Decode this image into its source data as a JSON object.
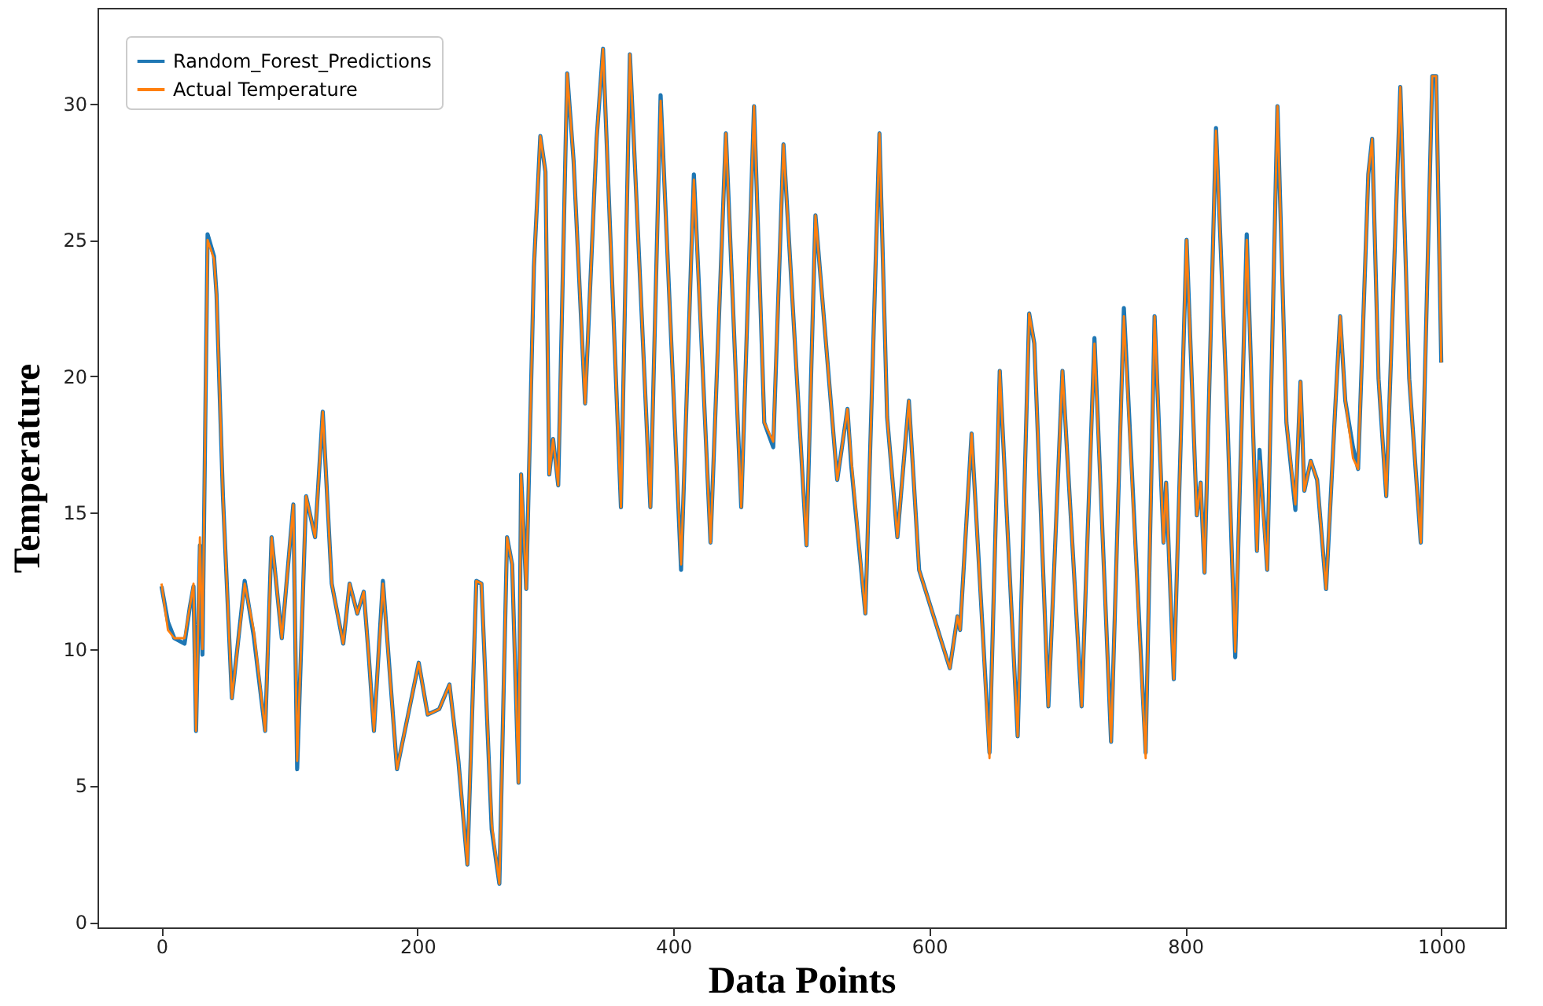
{
  "chart_data": {
    "type": "line",
    "xlabel": "Data Points",
    "ylabel": "Temperature",
    "xlim": [
      -50,
      1050
    ],
    "ylim": [
      -0.2,
      33.5
    ],
    "xticks": [
      0,
      200,
      400,
      600,
      800,
      {
        "value": 1000,
        "label": "1000"
      }
    ],
    "yticks": [
      0,
      5,
      10,
      15,
      20,
      25,
      30
    ],
    "grid": false,
    "legend": "top left",
    "line_style": "solid",
    "marker": "none",
    "x": [
      0,
      5,
      10,
      18,
      22,
      25,
      27,
      30,
      32,
      36,
      41,
      43,
      48,
      55,
      65,
      72,
      81,
      86,
      94,
      103,
      106,
      113,
      120,
      126,
      133,
      142,
      147,
      153,
      158,
      162,
      166,
      173,
      184,
      201,
      208,
      217,
      225,
      232,
      239,
      246,
      250,
      258,
      264,
      270,
      274,
      279,
      281,
      285,
      291,
      296,
      300,
      303,
      306,
      310,
      317,
      322,
      331,
      340,
      345,
      359,
      366,
      382,
      390,
      406,
      416,
      429,
      441,
      453,
      463,
      471,
      478,
      486,
      504,
      511,
      528,
      536,
      539,
      550,
      561,
      567,
      575,
      584,
      592,
      616,
      622,
      624,
      633,
      647,
      655,
      669,
      678,
      682,
      693,
      704,
      719,
      729,
      742,
      752,
      769,
      776,
      783,
      785,
      791,
      801,
      809,
      812,
      815,
      824,
      833,
      839,
      848,
      856,
      858,
      864,
      872,
      879,
      886,
      890,
      893,
      898,
      903,
      910,
      917,
      921,
      925,
      931,
      935,
      943,
      946,
      951,
      957,
      968,
      975,
      984,
      993,
      996,
      1000
    ],
    "series": [
      {
        "name": "Random_Forest_Predictions",
        "color": "#1f77b4",
        "values": [
          12.3,
          11.0,
          10.4,
          10.2,
          11.5,
          12.3,
          7.0,
          13.8,
          9.8,
          25.2,
          24.4,
          23.0,
          15.6,
          8.2,
          12.5,
          10.5,
          7.0,
          14.1,
          10.4,
          15.3,
          5.6,
          15.6,
          14.1,
          18.7,
          12.4,
          10.2,
          12.4,
          11.3,
          12.1,
          9.7,
          7.0,
          12.5,
          5.6,
          9.5,
          7.6,
          7.8,
          8.7,
          5.9,
          2.1,
          12.5,
          12.4,
          3.4,
          1.4,
          14.1,
          13.1,
          5.1,
          16.4,
          12.2,
          24.0,
          28.8,
          27.5,
          16.4,
          17.7,
          16.0,
          31.1,
          27.9,
          19.0,
          28.7,
          32.0,
          15.2,
          31.8,
          15.2,
          30.3,
          12.9,
          27.4,
          13.9,
          28.9,
          15.2,
          29.9,
          18.3,
          17.4,
          28.5,
          13.8,
          25.9,
          16.2,
          18.8,
          16.7,
          11.3,
          28.9,
          18.5,
          14.1,
          19.1,
          12.9,
          9.3,
          11.2,
          10.7,
          17.9,
          6.2,
          20.2,
          6.8,
          22.3,
          21.2,
          7.9,
          20.2,
          7.9,
          21.4,
          6.6,
          22.5,
          6.2,
          22.2,
          13.9,
          16.1,
          8.9,
          25.0,
          14.9,
          16.1,
          12.8,
          29.1,
          18.3,
          9.7,
          25.2,
          13.6,
          17.3,
          12.9,
          29.9,
          18.3,
          15.1,
          19.8,
          15.8,
          16.9,
          16.2,
          12.2,
          18.7,
          22.2,
          19.1,
          17.4,
          16.6,
          27.4,
          28.7,
          19.9,
          15.6,
          30.6,
          19.9,
          13.9,
          31.0,
          31.0,
          20.5
        ]
      },
      {
        "name": "Actual Temperature",
        "color": "#ff7f0e",
        "values": [
          12.4,
          10.7,
          10.4,
          10.4,
          11.5,
          12.4,
          7.0,
          14.1,
          10.0,
          25.0,
          24.3,
          23.0,
          15.6,
          8.2,
          12.4,
          10.7,
          7.0,
          14.1,
          10.4,
          15.3,
          5.9,
          15.6,
          14.1,
          18.7,
          12.4,
          10.2,
          12.4,
          11.3,
          12.1,
          9.7,
          7.0,
          12.4,
          5.6,
          9.5,
          7.6,
          7.8,
          8.7,
          5.9,
          2.1,
          12.5,
          12.4,
          3.6,
          1.4,
          14.1,
          13.1,
          5.1,
          16.4,
          12.2,
          24.0,
          28.8,
          27.5,
          16.4,
          17.7,
          16.0,
          31.1,
          27.9,
          19.0,
          28.7,
          32.0,
          15.2,
          31.8,
          15.2,
          30.1,
          13.1,
          27.2,
          13.9,
          28.9,
          15.2,
          29.9,
          18.3,
          17.6,
          28.5,
          13.8,
          25.9,
          16.2,
          18.8,
          16.9,
          11.3,
          28.9,
          18.5,
          14.1,
          19.1,
          12.9,
          9.3,
          11.2,
          10.7,
          17.9,
          6.0,
          20.2,
          6.8,
          22.3,
          21.2,
          7.9,
          20.2,
          7.9,
          21.2,
          6.6,
          22.2,
          6.0,
          22.2,
          13.9,
          16.1,
          8.9,
          25.0,
          14.9,
          16.1,
          12.8,
          29.0,
          18.3,
          9.9,
          25.0,
          13.6,
          16.9,
          12.9,
          29.9,
          18.3,
          15.3,
          19.8,
          15.8,
          16.9,
          16.2,
          12.2,
          18.7,
          22.2,
          19.1,
          17.0,
          16.6,
          27.4,
          28.7,
          19.9,
          15.6,
          30.6,
          19.9,
          13.9,
          31.0,
          31.0,
          20.5
        ]
      }
    ]
  }
}
